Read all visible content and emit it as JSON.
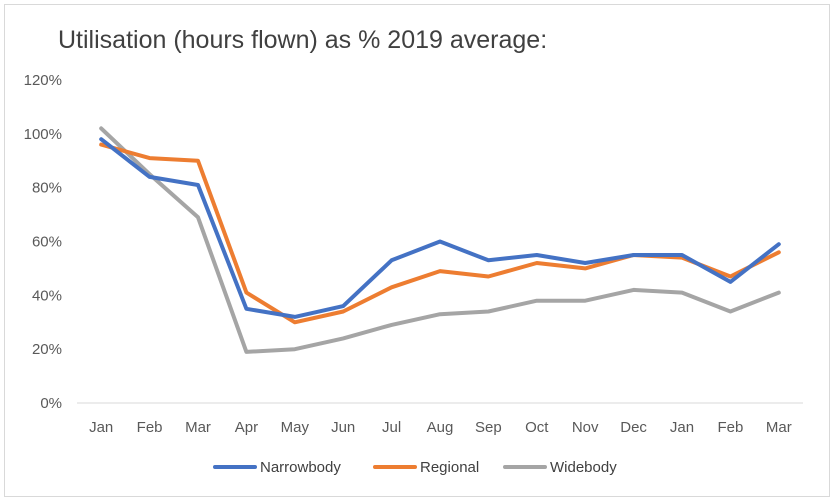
{
  "chart_data": {
    "type": "line",
    "title": "Utilisation (hours flown) as % 2019 average:",
    "xlabel": "",
    "ylabel": "",
    "categories": [
      "Jan",
      "Feb",
      "Mar",
      "Apr",
      "May",
      "Jun",
      "Jul",
      "Aug",
      "Sep",
      "Oct",
      "Nov",
      "Dec",
      "Jan",
      "Feb",
      "Mar"
    ],
    "y_ticks": [
      "0%",
      "20%",
      "40%",
      "60%",
      "80%",
      "100%",
      "120%"
    ],
    "ylim": [
      0,
      120
    ],
    "y_unit": "%",
    "grid": false,
    "legend_position": "bottom",
    "series": [
      {
        "name": "Narrowbody",
        "color": "#4472c4",
        "values": [
          98,
          84,
          81,
          35,
          32,
          36,
          53,
          60,
          53,
          55,
          52,
          55,
          55,
          45,
          59
        ]
      },
      {
        "name": "Regional",
        "color": "#ed7d31",
        "values": [
          96,
          91,
          90,
          41,
          30,
          34,
          43,
          49,
          47,
          52,
          50,
          55,
          54,
          47,
          56
        ]
      },
      {
        "name": "Widebody",
        "color": "#a5a5a5",
        "values": [
          102,
          85,
          69,
          19,
          20,
          24,
          29,
          33,
          34,
          38,
          38,
          42,
          41,
          34,
          41
        ]
      }
    ]
  }
}
